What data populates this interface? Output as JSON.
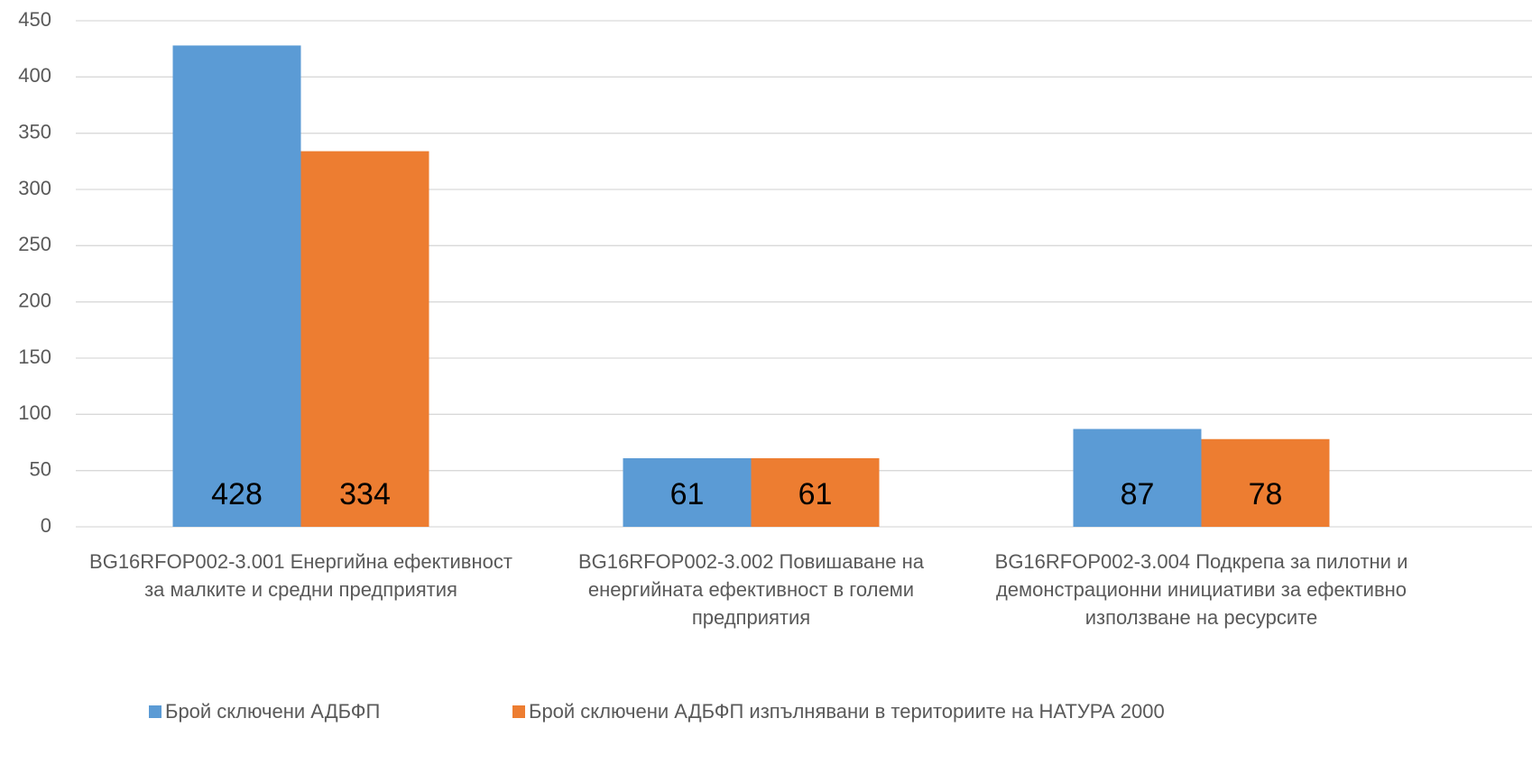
{
  "chart_data": {
    "type": "bar",
    "categories": [
      "BG16RFOP002-3.001 Енергийна ефективност за малките и средни предприятия",
      "BG16RFOP002-3.002 Повишаване на енергийната ефективност в големи предприятия",
      "BG16RFOP002-3.004 Подкрепа за пилотни и демонстрационни инициативи за ефективно използване на ресурсите"
    ],
    "series": [
      {
        "name": "Брой сключени АДБФП",
        "color": "#5b9bd5",
        "values": [
          428,
          61,
          87
        ]
      },
      {
        "name": "Брой сключени АДБФП изпълнявани в териториите на НАТУРА 2000",
        "color": "#ed7d31",
        "values": [
          334,
          61,
          78
        ]
      }
    ],
    "ylim": [
      0,
      450
    ],
    "yticks": [
      0,
      50,
      100,
      150,
      200,
      250,
      300,
      350,
      400,
      450
    ],
    "grid": true,
    "legend": "bottom"
  }
}
